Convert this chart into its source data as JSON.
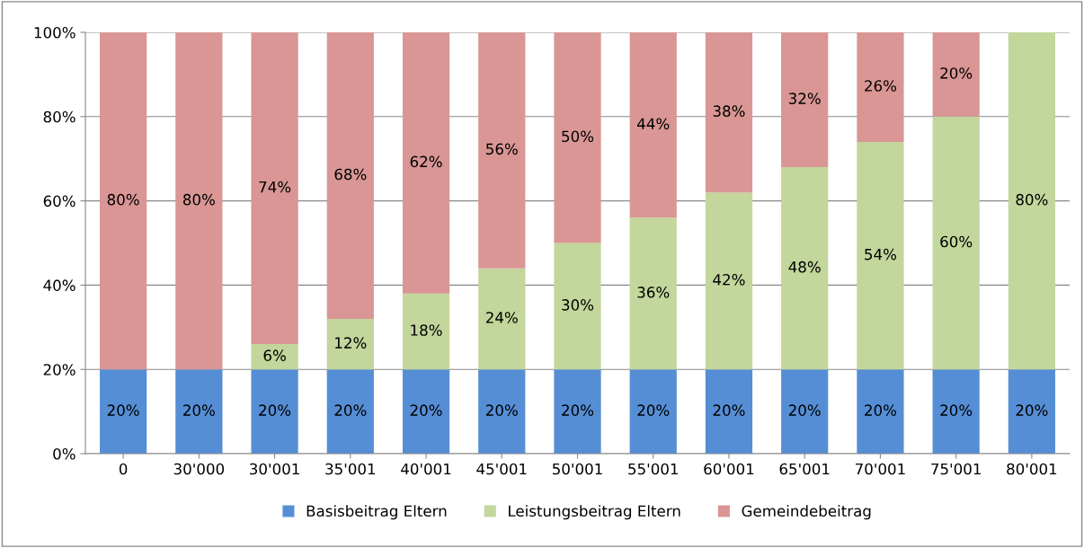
{
  "chart_data": {
    "type": "bar",
    "stacked": true,
    "categories": [
      "0",
      "30'000",
      "30'001",
      "35'001",
      "40'001",
      "45'001",
      "50'001",
      "55'001",
      "60'001",
      "65'001",
      "70'001",
      "75'001",
      "80'001"
    ],
    "series": [
      {
        "name": "Basisbeitrag Eltern",
        "color": "#558ed5",
        "values": [
          20,
          20,
          20,
          20,
          20,
          20,
          20,
          20,
          20,
          20,
          20,
          20,
          20
        ],
        "value_labels": [
          "20%",
          "20%",
          "20%",
          "20%",
          "20%",
          "20%",
          "20%",
          "20%",
          "20%",
          "20%",
          "20%",
          "20%",
          "20%"
        ]
      },
      {
        "name": "Leistungsbeitrag Eltern",
        "color": "#c3d69b",
        "values": [
          0,
          0,
          6,
          12,
          18,
          24,
          30,
          36,
          42,
          48,
          54,
          60,
          80
        ],
        "value_labels": [
          null,
          null,
          "6%",
          "12%",
          "18%",
          "24%",
          "30%",
          "36%",
          "42%",
          "48%",
          "54%",
          "60%",
          "80%"
        ]
      },
      {
        "name": "Gemeindebeitrag",
        "color": "#d99694",
        "values": [
          80,
          80,
          74,
          68,
          62,
          56,
          50,
          44,
          38,
          32,
          26,
          20,
          0
        ],
        "value_labels": [
          "80%",
          "80%",
          "74%",
          "68%",
          "62%",
          "56%",
          "50%",
          "44%",
          "38%",
          "32%",
          "26%",
          "20%",
          null
        ]
      }
    ],
    "ylim": [
      0,
      100
    ],
    "yticks": [
      {
        "value": 0,
        "label": "0%"
      },
      {
        "value": 20,
        "label": "20%"
      },
      {
        "value": 40,
        "label": "40%"
      },
      {
        "value": 60,
        "label": "60%"
      },
      {
        "value": 80,
        "label": "80%"
      },
      {
        "value": 100,
        "label": "100%"
      }
    ],
    "grid": "y",
    "legend": "bottom"
  }
}
